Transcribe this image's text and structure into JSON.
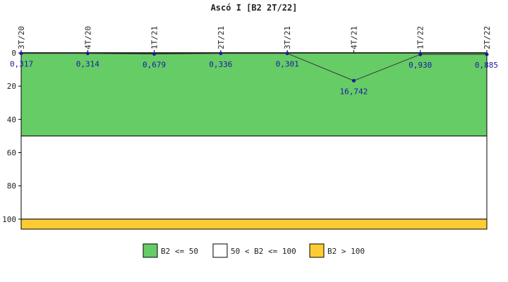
{
  "chart_data": {
    "type": "line",
    "title": "Ascó I [B2 2T/22]",
    "categories": [
      "3T/20",
      "4T/20",
      "1T/21",
      "2T/21",
      "3T/21",
      "4T/21",
      "1T/22",
      "2T/22"
    ],
    "series": [
      {
        "values": [
          0.317,
          0.314,
          0.679,
          0.336,
          0.301,
          16.742,
          0.93,
          0.885
        ],
        "color": "#1a1aa6"
      }
    ],
    "data_labels": [
      "0,317",
      "0,314",
      "0,679",
      "0,336",
      "0,301",
      "16,742",
      "0,930",
      "0,885"
    ],
    "yaxis": {
      "ticks": [
        0,
        20,
        40,
        60,
        80,
        100
      ],
      "tick_labels": [
        "0",
        "20",
        "40",
        "60",
        "80",
        "100"
      ],
      "ylim": [
        0,
        106
      ],
      "inverted": true
    },
    "bands": [
      {
        "from": 0,
        "to": 50,
        "color": "#66cc66"
      },
      {
        "from": 50,
        "to": 100,
        "color": "#ffffff"
      },
      {
        "from": 100,
        "to": 106,
        "color": "#ffcc33"
      }
    ],
    "legend": {
      "placement": "bottom",
      "items": [
        {
          "label": "B2 <= 50",
          "color": "#66cc66"
        },
        {
          "label": "50 < B2 <= 100",
          "color": "#ffffff"
        },
        {
          "label": "B2 > 100",
          "color": "#ffcc33"
        }
      ]
    },
    "grid": false
  }
}
